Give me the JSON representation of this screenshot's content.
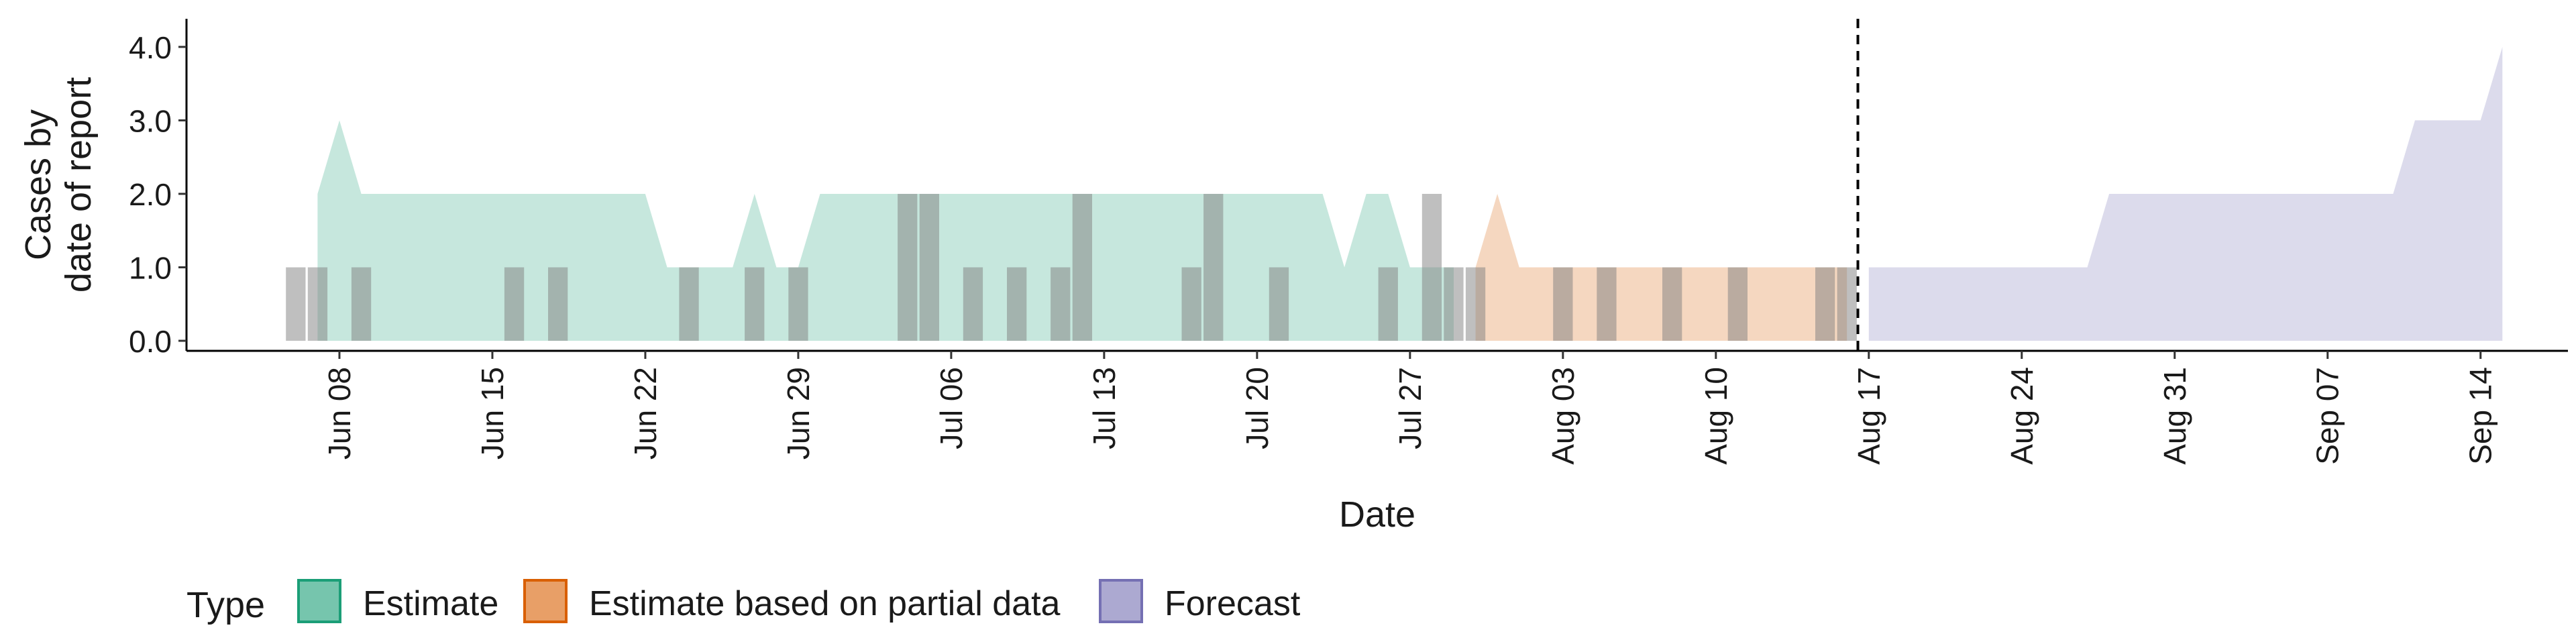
{
  "chart_data": {
    "type": "area",
    "title": "",
    "xlabel": "Date",
    "ylabel_lines": [
      "Cases by",
      "date of report"
    ],
    "ylim": [
      0,
      4.2
    ],
    "xlim": [
      "2020-06-01",
      "2020-09-18"
    ],
    "y_ticks": [
      {
        "value": 0,
        "label": "0.0"
      },
      {
        "value": 1,
        "label": "1.0"
      },
      {
        "value": 2,
        "label": "2.0"
      },
      {
        "value": 3,
        "label": "3.0"
      },
      {
        "value": 4,
        "label": "4.0"
      }
    ],
    "x_ticks": [
      {
        "date": "2020-06-08",
        "label": "Jun 08"
      },
      {
        "date": "2020-06-15",
        "label": "Jun 15"
      },
      {
        "date": "2020-06-22",
        "label": "Jun 22"
      },
      {
        "date": "2020-06-29",
        "label": "Jun 29"
      },
      {
        "date": "2020-07-06",
        "label": "Jul 06"
      },
      {
        "date": "2020-07-13",
        "label": "Jul 13"
      },
      {
        "date": "2020-07-20",
        "label": "Jul 20"
      },
      {
        "date": "2020-07-27",
        "label": "Jul 27"
      },
      {
        "date": "2020-08-03",
        "label": "Aug 03"
      },
      {
        "date": "2020-08-10",
        "label": "Aug 10"
      },
      {
        "date": "2020-08-17",
        "label": "Aug 17"
      },
      {
        "date": "2020-08-24",
        "label": "Aug 24"
      },
      {
        "date": "2020-08-31",
        "label": "Aug 31"
      },
      {
        "date": "2020-09-07",
        "label": "Sep 07"
      },
      {
        "date": "2020-09-14",
        "label": "Sep 14"
      }
    ],
    "cutoff_date": "2020-08-16",
    "series": [
      {
        "name": "Estimate",
        "color": "#1b9e77",
        "points": [
          [
            "2020-06-07",
            2
          ],
          [
            "2020-06-08",
            3
          ],
          [
            "2020-06-09",
            2
          ],
          [
            "2020-06-10",
            2
          ],
          [
            "2020-06-11",
            2
          ],
          [
            "2020-06-12",
            2
          ],
          [
            "2020-06-13",
            2
          ],
          [
            "2020-06-14",
            2
          ],
          [
            "2020-06-15",
            2
          ],
          [
            "2020-06-16",
            2
          ],
          [
            "2020-06-17",
            2
          ],
          [
            "2020-06-18",
            2
          ],
          [
            "2020-06-19",
            2
          ],
          [
            "2020-06-20",
            2
          ],
          [
            "2020-06-21",
            2
          ],
          [
            "2020-06-22",
            2
          ],
          [
            "2020-06-23",
            1
          ],
          [
            "2020-06-24",
            1
          ],
          [
            "2020-06-25",
            1
          ],
          [
            "2020-06-26",
            1
          ],
          [
            "2020-06-27",
            2
          ],
          [
            "2020-06-28",
            1
          ],
          [
            "2020-06-29",
            1
          ],
          [
            "2020-06-30",
            2
          ],
          [
            "2020-07-01",
            2
          ],
          [
            "2020-07-02",
            2
          ],
          [
            "2020-07-03",
            2
          ],
          [
            "2020-07-04",
            2
          ],
          [
            "2020-07-05",
            2
          ],
          [
            "2020-07-06",
            2
          ],
          [
            "2020-07-07",
            2
          ],
          [
            "2020-07-08",
            2
          ],
          [
            "2020-07-09",
            2
          ],
          [
            "2020-07-10",
            2
          ],
          [
            "2020-07-11",
            2
          ],
          [
            "2020-07-12",
            2
          ],
          [
            "2020-07-13",
            2
          ],
          [
            "2020-07-14",
            2
          ],
          [
            "2020-07-15",
            2
          ],
          [
            "2020-07-16",
            2
          ],
          [
            "2020-07-17",
            2
          ],
          [
            "2020-07-18",
            2
          ],
          [
            "2020-07-19",
            2
          ],
          [
            "2020-07-20",
            2
          ],
          [
            "2020-07-21",
            2
          ],
          [
            "2020-07-22",
            2
          ],
          [
            "2020-07-23",
            2
          ],
          [
            "2020-07-24",
            1
          ],
          [
            "2020-07-25",
            2
          ],
          [
            "2020-07-26",
            2
          ],
          [
            "2020-07-27",
            1
          ],
          [
            "2020-07-28",
            1
          ],
          [
            "2020-07-29",
            1
          ]
        ]
      },
      {
        "name": "Estimate based on partial data",
        "color": "#d95f02",
        "points": [
          [
            "2020-07-30",
            1
          ],
          [
            "2020-07-31",
            2
          ],
          [
            "2020-08-01",
            1
          ],
          [
            "2020-08-02",
            1
          ],
          [
            "2020-08-03",
            1
          ],
          [
            "2020-08-04",
            1
          ],
          [
            "2020-08-05",
            1
          ],
          [
            "2020-08-06",
            1
          ],
          [
            "2020-08-07",
            1
          ],
          [
            "2020-08-08",
            1
          ],
          [
            "2020-08-09",
            1
          ],
          [
            "2020-08-10",
            1
          ],
          [
            "2020-08-11",
            1
          ],
          [
            "2020-08-12",
            1
          ],
          [
            "2020-08-13",
            1
          ],
          [
            "2020-08-14",
            1
          ],
          [
            "2020-08-15",
            1
          ],
          [
            "2020-08-16",
            1
          ]
        ]
      },
      {
        "name": "Forecast",
        "color": "#7570b3",
        "points": [
          [
            "2020-08-17",
            1
          ],
          [
            "2020-08-18",
            1
          ],
          [
            "2020-08-19",
            1
          ],
          [
            "2020-08-20",
            1
          ],
          [
            "2020-08-21",
            1
          ],
          [
            "2020-08-22",
            1
          ],
          [
            "2020-08-23",
            1
          ],
          [
            "2020-08-24",
            1
          ],
          [
            "2020-08-25",
            1
          ],
          [
            "2020-08-26",
            1
          ],
          [
            "2020-08-27",
            1
          ],
          [
            "2020-08-28",
            2
          ],
          [
            "2020-08-29",
            2
          ],
          [
            "2020-08-30",
            2
          ],
          [
            "2020-08-31",
            2
          ],
          [
            "2020-09-01",
            2
          ],
          [
            "2020-09-02",
            2
          ],
          [
            "2020-09-03",
            2
          ],
          [
            "2020-09-04",
            2
          ],
          [
            "2020-09-05",
            2
          ],
          [
            "2020-09-06",
            2
          ],
          [
            "2020-09-07",
            2
          ],
          [
            "2020-09-08",
            2
          ],
          [
            "2020-09-09",
            2
          ],
          [
            "2020-09-10",
            2
          ],
          [
            "2020-09-11",
            3
          ],
          [
            "2020-09-12",
            3
          ],
          [
            "2020-09-13",
            3
          ],
          [
            "2020-09-14",
            3
          ],
          [
            "2020-09-15",
            4
          ]
        ]
      }
    ],
    "reported_cases": [
      [
        "2020-06-06",
        1
      ],
      [
        "2020-06-07",
        1
      ],
      [
        "2020-06-09",
        1
      ],
      [
        "2020-06-16",
        1
      ],
      [
        "2020-06-18",
        1
      ],
      [
        "2020-06-24",
        1
      ],
      [
        "2020-06-27",
        1
      ],
      [
        "2020-06-29",
        1
      ],
      [
        "2020-07-04",
        2
      ],
      [
        "2020-07-05",
        2
      ],
      [
        "2020-07-07",
        1
      ],
      [
        "2020-07-09",
        1
      ],
      [
        "2020-07-11",
        1
      ],
      [
        "2020-07-12",
        2
      ],
      [
        "2020-07-17",
        1
      ],
      [
        "2020-07-18",
        2
      ],
      [
        "2020-07-21",
        1
      ],
      [
        "2020-07-26",
        1
      ],
      [
        "2020-07-28",
        2
      ],
      [
        "2020-07-29",
        1
      ],
      [
        "2020-07-30",
        1
      ],
      [
        "2020-08-03",
        1
      ],
      [
        "2020-08-05",
        1
      ],
      [
        "2020-08-08",
        1
      ],
      [
        "2020-08-11",
        1
      ],
      [
        "2020-08-15",
        1
      ],
      [
        "2020-08-16",
        1
      ]
    ],
    "legend": {
      "title": "Type",
      "position": "bottom",
      "entries": [
        {
          "label": "Estimate",
          "color": "#1b9e77"
        },
        {
          "label": "Estimate based on partial data",
          "color": "#d95f02"
        },
        {
          "label": "Forecast",
          "color": "#7570b3"
        }
      ]
    },
    "grid": false
  }
}
